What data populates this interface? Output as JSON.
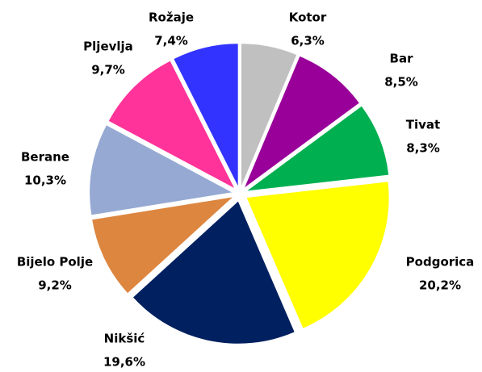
{
  "chart_data": {
    "type": "pie",
    "categories": [
      "Kotor",
      "Bar",
      "Tivat",
      "Podgorica",
      "Nikšić",
      "Bijelo Polje",
      "Berane",
      "Pljevlja",
      "Rožaje"
    ],
    "values": [
      6.3,
      8.5,
      8.3,
      20.2,
      19.6,
      9.2,
      10.3,
      9.7,
      7.4
    ],
    "value_labels": [
      "6,3%",
      "8,5%",
      "8,3%",
      "20,2%",
      "19,6%",
      "9,2%",
      "10,3%",
      "9,7%",
      "7,4%"
    ],
    "colors": [
      "#c0c0c0",
      "#990099",
      "#00b050",
      "#ffff00",
      "#002060",
      "#dd8640",
      "#95a9d3",
      "#ff3399",
      "#3333ff"
    ]
  }
}
